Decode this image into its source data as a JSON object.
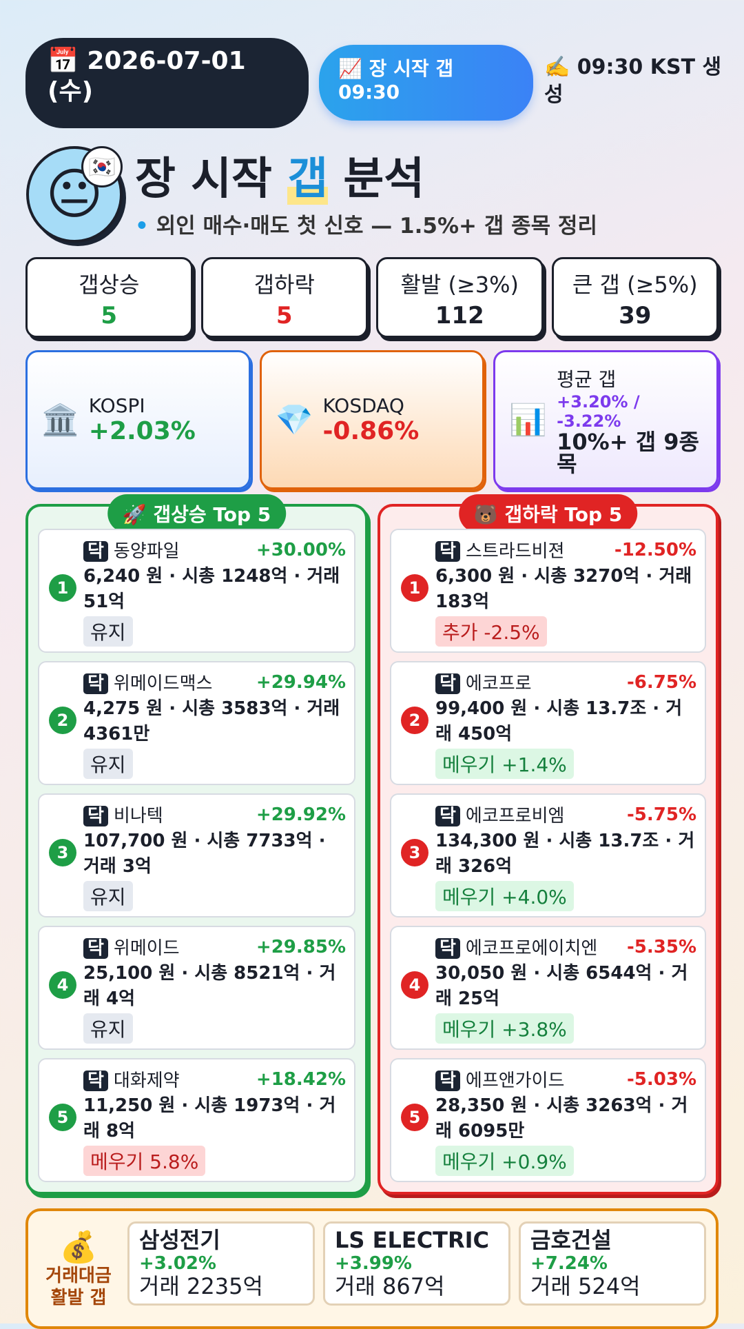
{
  "header": {
    "date": "📅 2026-07-01 (수)",
    "badge": "📈 장 시작 갭 09:30",
    "generated": "✍️ 09:30 KST 생성"
  },
  "hero": {
    "face": "😐",
    "flag": "🇰🇷",
    "title_pre": "장 시작 ",
    "title_mark": "갭",
    "title_post": " 분석",
    "subtitle": "외인 매수·매도 첫 신호 — 1.5%+ 갭 종목 정리"
  },
  "stats": [
    {
      "label": "갭상승",
      "value": "5",
      "color": "#1e9e46"
    },
    {
      "label": "갭하락",
      "value": "5",
      "color": "#e02424"
    },
    {
      "label": "활발 (≥3%)",
      "value": "112",
      "color": "#1b1f2a"
    },
    {
      "label": "큰 갭 (≥5%)",
      "value": "39",
      "color": "#1b1f2a"
    }
  ],
  "indices": [
    {
      "icon": "🏛️",
      "name": "KOSPI",
      "value": "+2.03%",
      "color": "#1e9e46"
    },
    {
      "icon": "💎",
      "name": "KOSDAQ",
      "value": "-0.86%",
      "color": "#e02424"
    }
  ],
  "average": {
    "icon": "📊",
    "label": "평균 갭",
    "value": "+3.20% / -3.22%",
    "note": "10%+ 갭 9종목"
  },
  "gainers": {
    "title": "🚀 갭상승 Top 5",
    "items": [
      {
        "rank": "1",
        "market": "닥",
        "name": "동양파일",
        "change": "+30.00%",
        "detail": "6,240 원 · 시총 1248억 · 거래 51억",
        "tag": "유지",
        "tag_color": "neutral"
      },
      {
        "rank": "2",
        "market": "닥",
        "name": "위메이드맥스",
        "change": "+29.94%",
        "detail": "4,275 원 · 시총 3583억 · 거래 4361만",
        "tag": "유지",
        "tag_color": "neutral"
      },
      {
        "rank": "3",
        "market": "닥",
        "name": "비나텍",
        "change": "+29.92%",
        "detail": "107,700 원 · 시총 7733억 · 거래 3억",
        "tag": "유지",
        "tag_color": "neutral"
      },
      {
        "rank": "4",
        "market": "닥",
        "name": "위메이드",
        "change": "+29.85%",
        "detail": "25,100 원 · 시총 8521억 · 거래 4억",
        "tag": "유지",
        "tag_color": "neutral"
      },
      {
        "rank": "5",
        "market": "닥",
        "name": "대화제약",
        "change": "+18.42%",
        "detail": "11,250 원 · 시총 1973억 · 거래 8억",
        "tag": "메우기 5.8%",
        "tag_color": "red"
      }
    ]
  },
  "losers": {
    "title": "🐻 갭하락 Top 5",
    "items": [
      {
        "rank": "1",
        "market": "닥",
        "name": "스트라드비젼",
        "change": "-12.50%",
        "detail": "6,300 원 · 시총 3270억 · 거래 183억",
        "tag": "추가 -2.5%",
        "tag_color": "red"
      },
      {
        "rank": "2",
        "market": "닥",
        "name": "에코프로",
        "change": "-6.75%",
        "detail": "99,400 원 · 시총 13.7조 · 거래 450억",
        "tag": "메우기 +1.4%",
        "tag_color": "green"
      },
      {
        "rank": "3",
        "market": "닥",
        "name": "에코프로비엠",
        "change": "-5.75%",
        "detail": "134,300 원 · 시총 13.7조 · 거래 326억",
        "tag": "메우기 +4.0%",
        "tag_color": "green"
      },
      {
        "rank": "4",
        "market": "닥",
        "name": "에코프로에이치엔",
        "change": "-5.35%",
        "detail": "30,050 원 · 시총 6544억 · 거래 25억",
        "tag": "메우기 +3.8%",
        "tag_color": "green"
      },
      {
        "rank": "5",
        "market": "닥",
        "name": "에프앤가이드",
        "change": "-5.03%",
        "detail": "28,350 원 · 시총 3263억 · 거래 6095만",
        "tag": "메우기 +0.9%",
        "tag_color": "green"
      }
    ]
  },
  "volume": {
    "icon": "💰",
    "label": "거래대금 활발 갭",
    "items": [
      {
        "name": "삼성전기",
        "change": "+3.02%",
        "volume": "거래 2235억"
      },
      {
        "name": "LS ELECTRIC",
        "change": "+3.99%",
        "volume": "거래 867억"
      },
      {
        "name": "금호건설",
        "change": "+7.24%",
        "volume": "거래 524억"
      }
    ]
  }
}
